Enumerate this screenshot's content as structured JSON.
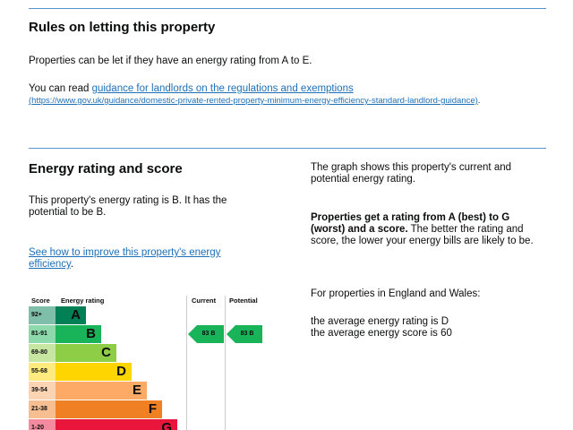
{
  "letting": {
    "title": "Rules on letting this property",
    "intro": "Properties can be let if they have an energy rating from A to E.",
    "read_prefix": "You can read ",
    "guidance_link": "guidance for landlords on the regulations and exemptions",
    "guidance_url_text": "(https://www.gov.uk/guidance/domestic-private-rented-property-minimum-energy-efficiency-standard-landlord-guidance)",
    "suffix": "."
  },
  "energy": {
    "title": "Energy rating and score",
    "summary": "This property's energy rating is B. It has the potential to be B.",
    "improve_link": "See how to improve this property's energy efficiency",
    "improve_suffix": ".",
    "graph_note": "The graph shows this property's current and potential energy rating.",
    "ratings_bold": "Properties get a rating from A (best) to G (worst) and a score.",
    "ratings_rest": " The better the rating and score, the lower your energy bills are likely to be.",
    "region": "For properties in England and Wales:",
    "avg_rating": "the average energy rating is D",
    "avg_score": "the average energy score is 60"
  },
  "chart": {
    "headers": {
      "score": "Score",
      "rating": "Energy rating",
      "current": "Current",
      "potential": "Potential"
    },
    "bands": [
      {
        "score": "92+",
        "letter": "A",
        "color": "#008054",
        "tint": "#7fbfa9"
      },
      {
        "score": "81-91",
        "letter": "B",
        "color": "#19b459",
        "tint": "#8cd9ac"
      },
      {
        "score": "69-80",
        "letter": "C",
        "color": "#8dce46",
        "tint": "#c6e6a2"
      },
      {
        "score": "55-68",
        "letter": "D",
        "color": "#ffd500",
        "tint": "#ffea80"
      },
      {
        "score": "39-54",
        "letter": "E",
        "color": "#fcaa65",
        "tint": "#fdd4b2"
      },
      {
        "score": "21-38",
        "letter": "F",
        "color": "#ef8023",
        "tint": "#f7bf91"
      },
      {
        "score": "1-20",
        "letter": "G",
        "color": "#e9153b",
        "tint": "#f48a9d"
      }
    ],
    "current": {
      "score": "83",
      "letter": "B",
      "label": "83  B"
    },
    "potential": {
      "score": "83",
      "letter": "B",
      "label": "83  B"
    }
  }
}
